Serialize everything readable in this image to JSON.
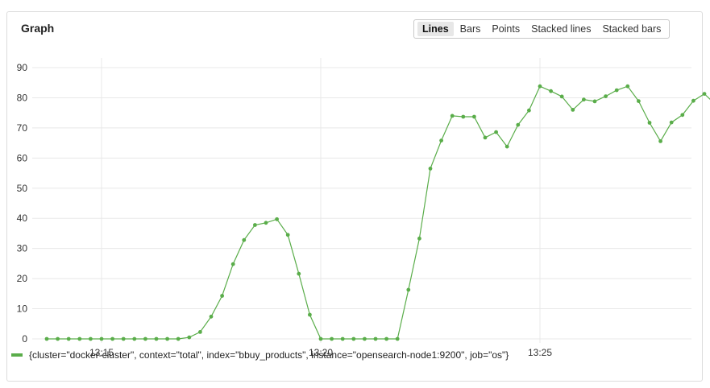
{
  "panel": {
    "title": "Graph"
  },
  "chart_types": {
    "options": [
      "Lines",
      "Bars",
      "Points",
      "Stacked lines",
      "Stacked bars"
    ],
    "selected": "Lines"
  },
  "colors": {
    "series": "#5aad4a",
    "grid": "#e8e8e8"
  },
  "chart_data": {
    "type": "line",
    "ylim": [
      0,
      90
    ],
    "yticks": [
      0,
      10,
      20,
      30,
      40,
      50,
      60,
      70,
      80,
      90
    ],
    "xtick_labels": [
      "13:15",
      "13:20",
      "13:25"
    ],
    "x_start_minute": 13.75,
    "x_step_minutes": 0.25,
    "series": [
      {
        "name": "{cluster=\"docker-cluster\", context=\"total\", index=\"bbuy_products\", instance=\"opensearch-node1:9200\", job=\"os\"}",
        "values": [
          0,
          0,
          0,
          0,
          0,
          0,
          0,
          0,
          0,
          0,
          0,
          0,
          0,
          0.5,
          2.3,
          7.4,
          14.3,
          24.8,
          32.8,
          37.8,
          38.5,
          39.7,
          34.5,
          21.6,
          8.0,
          0,
          0,
          0,
          0,
          0,
          0,
          0,
          0,
          16.3,
          33.3,
          56.5,
          65.8,
          74.0,
          73.7,
          73.7,
          66.8,
          68.6,
          63.8,
          71.0,
          75.8,
          83.8,
          82.2,
          80.4,
          76.0,
          79.4,
          78.8,
          80.5,
          82.5,
          83.8,
          78.9,
          71.7,
          65.6,
          71.8,
          74.3,
          79.0,
          81.3,
          77.9
        ]
      }
    ]
  }
}
